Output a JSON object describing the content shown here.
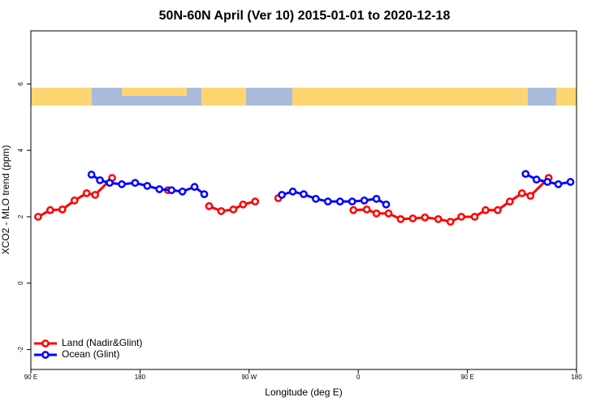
{
  "chart_data": {
    "type": "line",
    "title": "50N-60N April (Ver 10)   2015-01-01 to 2020-12-18",
    "x_label": "Longitude (deg E)",
    "y_label": "XCO2 - MLO trend (ppm)",
    "xlim": [
      90,
      540
    ],
    "ylim": [
      -2.6,
      7.6
    ],
    "xticks": [
      {
        "value": 90,
        "label": "90 E"
      },
      {
        "value": 180,
        "label": "180"
      },
      {
        "value": 270,
        "label": "90 W"
      },
      {
        "value": 360,
        "label": "0"
      },
      {
        "value": 450,
        "label": "90 E"
      },
      {
        "value": 540,
        "label": "180"
      }
    ],
    "yticks": [
      -2,
      0,
      2,
      4,
      6
    ],
    "legend": "bottom-left",
    "series": [
      {
        "name": "Land (Nadir&Glint)",
        "color": "#ff0000",
        "x": [
          96,
          106,
          116,
          126,
          136,
          143,
          157,
          180,
          203,
          220,
          237,
          247,
          257,
          265,
          275,
          285,
          294,
          325,
          356,
          367,
          375,
          385,
          395,
          405,
          415,
          426,
          436,
          445,
          456,
          465,
          475,
          485,
          495,
          502,
          517
        ],
        "values": [
          2.0,
          2.2,
          2.22,
          2.49,
          2.71,
          2.66,
          3.17,
          null,
          2.8,
          null,
          2.32,
          2.17,
          2.22,
          2.37,
          2.46,
          null,
          2.56,
          null,
          2.2,
          2.22,
          2.1,
          2.1,
          1.93,
          1.95,
          1.98,
          1.93,
          1.85,
          2.0,
          2.0,
          2.2,
          2.2,
          2.46,
          2.71,
          2.63,
          3.17
        ]
      },
      {
        "name": "Ocean (Glint)",
        "color": "#0000ff",
        "x": [
          140,
          147,
          155,
          165,
          176,
          186,
          196,
          206,
          215,
          225,
          233,
          265,
          297,
          306,
          315,
          325,
          335,
          345,
          355,
          365,
          375,
          383,
          440,
          498,
          507,
          516,
          525,
          535
        ],
        "values": [
          3.27,
          3.1,
          3.02,
          2.98,
          3.02,
          2.93,
          2.83,
          2.8,
          2.76,
          2.9,
          2.68,
          null,
          2.66,
          2.76,
          2.68,
          2.54,
          2.46,
          2.46,
          2.46,
          2.49,
          2.54,
          2.37,
          null,
          3.29,
          3.12,
          3.05,
          2.98,
          3.05
        ]
      }
    ]
  }
}
